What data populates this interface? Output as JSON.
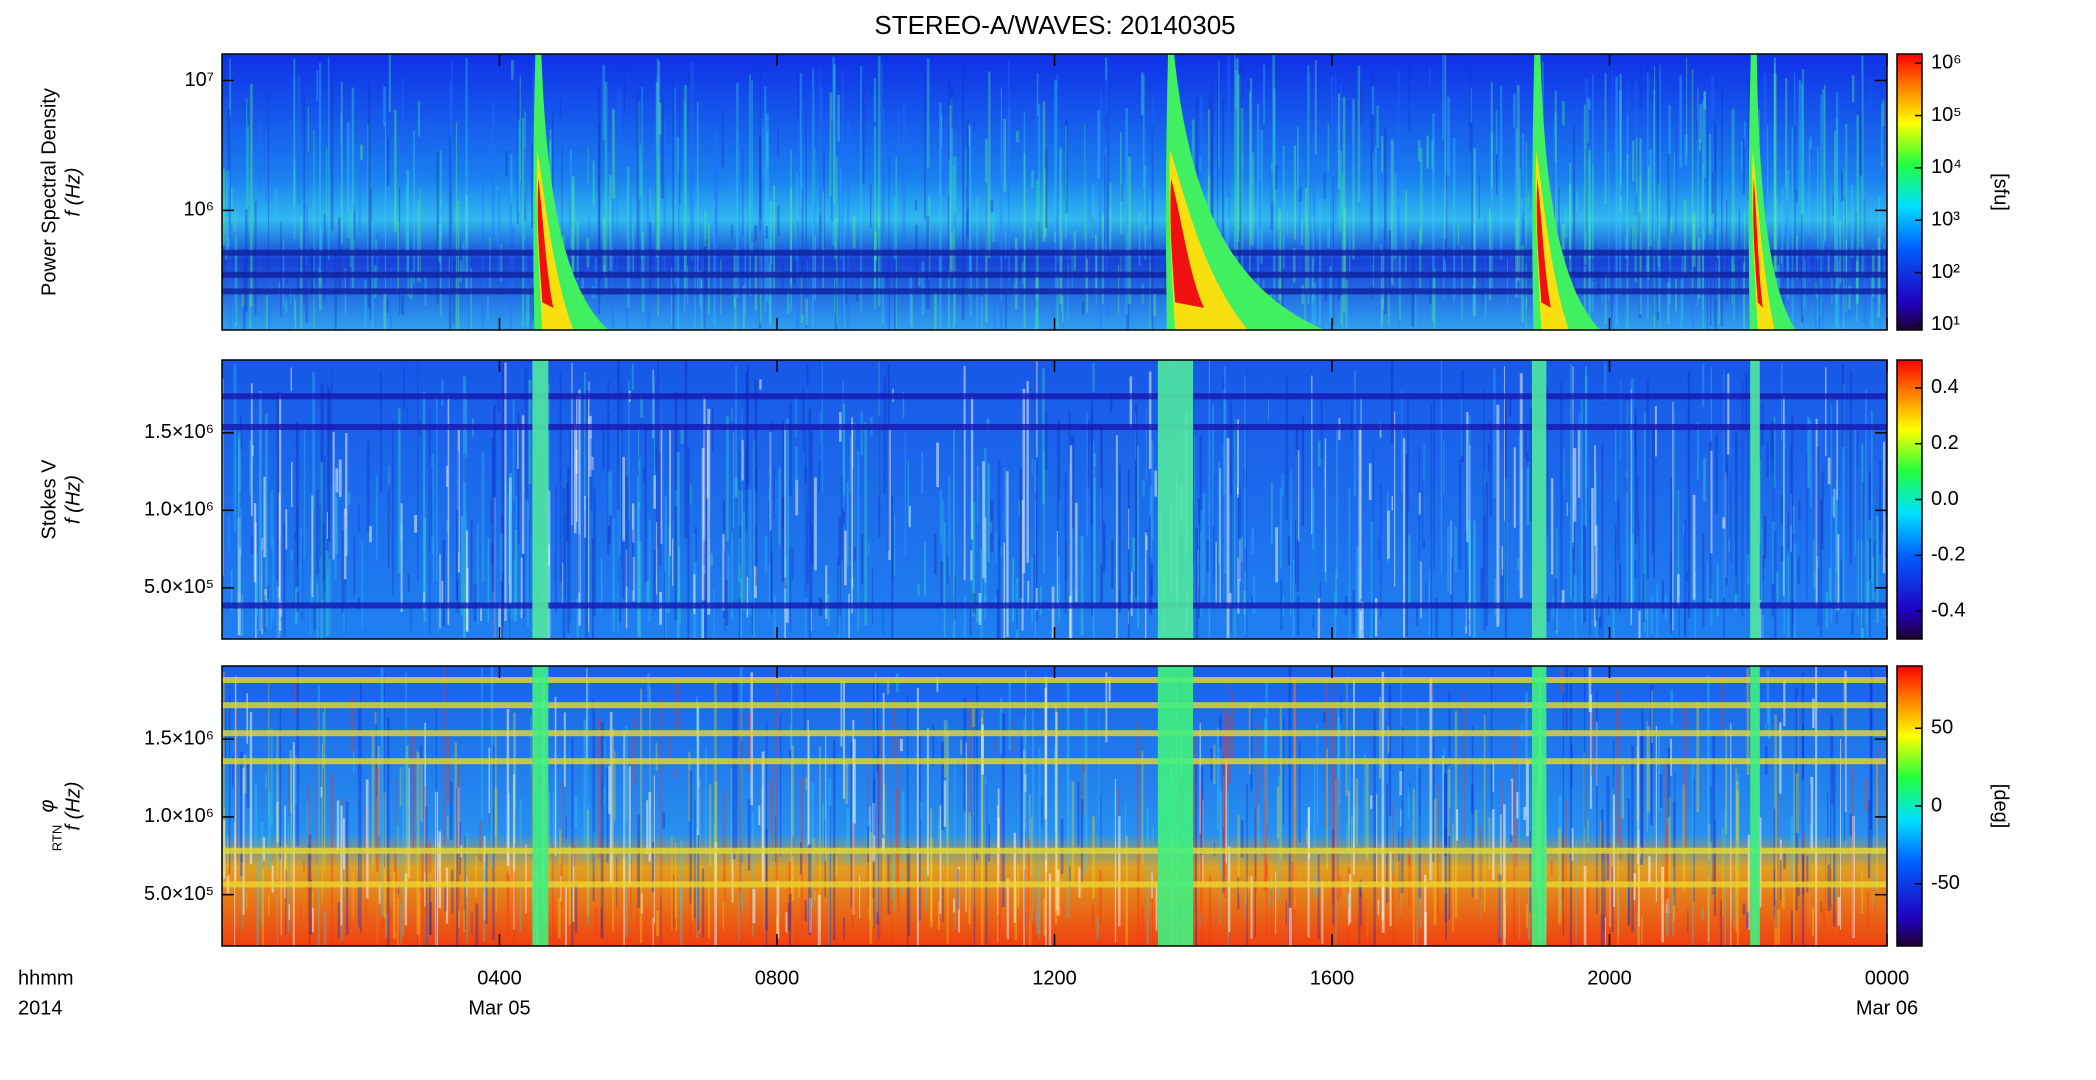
{
  "chart_data": [
    {
      "type": "spectrogram",
      "title": "STEREO-A/WAVES: 20140305",
      "ylabel": "Power Spectral Density",
      "ylabel2": "f (Hz)",
      "log_y": true,
      "xlim": [
        0,
        24
      ],
      "ylim": [
        120000,
        16000000
      ],
      "yticks": [
        {
          "value": 1000000,
          "label": "10⁶"
        },
        {
          "value": 10000000,
          "label": "10⁷"
        }
      ],
      "colorbar": {
        "log": true,
        "lim": [
          8,
          1500000
        ],
        "label": "[sfu]",
        "ticks": [
          {
            "value": 10,
            "label": "10¹"
          },
          {
            "value": 100,
            "label": "10²"
          },
          {
            "value": 1000,
            "label": "10³"
          },
          {
            "value": 10000,
            "label": "10⁴"
          },
          {
            "value": 100000,
            "label": "10⁵"
          },
          {
            "value": 1000000,
            "label": "10⁶"
          }
        ]
      }
    },
    {
      "type": "spectrogram",
      "ylabel": "Stokes V",
      "ylabel2": "f (Hz)",
      "log_y": false,
      "xlim": [
        0,
        24
      ],
      "ylim": [
        170000,
        1970000
      ],
      "yticks": [
        {
          "value": 500000,
          "label": "5.0×10⁵"
        },
        {
          "value": 1000000,
          "label": "1.0×10⁶"
        },
        {
          "value": 1500000,
          "label": "1.5×10⁶"
        }
      ],
      "colorbar": {
        "log": false,
        "lim": [
          -0.5,
          0.5
        ],
        "ticks": [
          -0.4,
          -0.2,
          {
            "value": 0,
            "label": "0.0"
          },
          0.2,
          0.4
        ]
      }
    },
    {
      "type": "spectrogram",
      "ylabel": "φ",
      "ylabel_sub": "RTN",
      "ylabel2": "f (Hz)",
      "log_y": false,
      "xlim": [
        0,
        24
      ],
      "ylim": [
        170000,
        1970000
      ],
      "yticks": [
        {
          "value": 500000,
          "label": "5.0×10⁵"
        },
        {
          "value": 1000000,
          "label": "1.0×10⁶"
        },
        {
          "value": 1500000,
          "label": "1.5×10⁶"
        }
      ],
      "colorbar": {
        "log": false,
        "lim": [
          -90,
          90
        ],
        "label": "[deg]",
        "ticks": [
          -50,
          0,
          50
        ]
      },
      "xaxis_labels": [
        "hhmm",
        "2014"
      ],
      "xticks": [
        {
          "value": 4,
          "label": "0400",
          "date": "Mar 05"
        },
        {
          "value": 8,
          "label": "0800"
        },
        {
          "value": 12,
          "label": "1200"
        },
        {
          "value": 16,
          "label": "1600"
        },
        {
          "value": 20,
          "label": "2000"
        },
        {
          "value": 24,
          "label": "0000",
          "date": "Mar 06"
        }
      ]
    }
  ]
}
